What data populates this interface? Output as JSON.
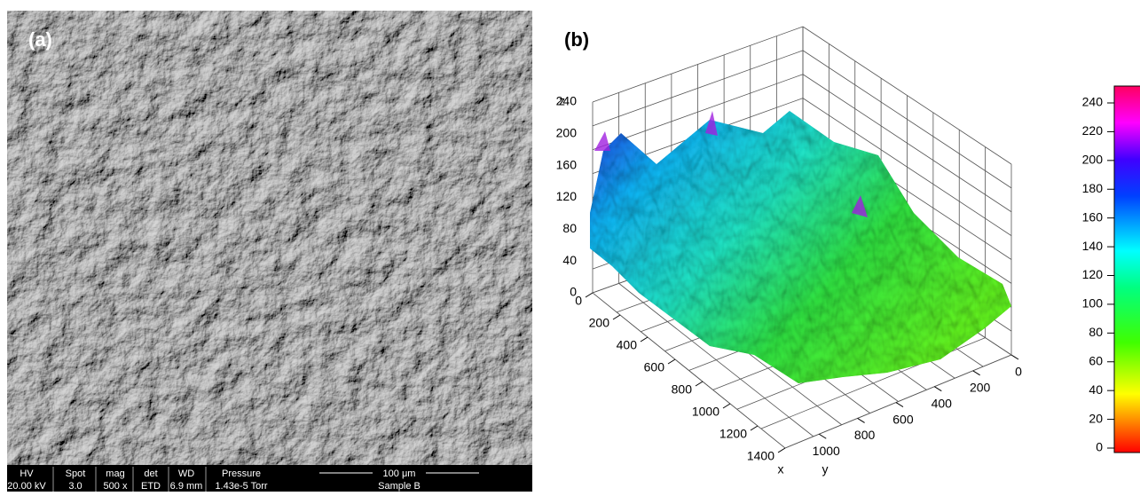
{
  "panel_a": {
    "label": "(a)",
    "info_headers": [
      "HV",
      "Spot",
      "mag",
      "det",
      "WD",
      "Pressure"
    ],
    "info_values": [
      "20.00 kV",
      "3.0",
      "500 x",
      "ETD",
      "6.9 mm",
      "1.43e-5 Torr"
    ],
    "scale_bar": "100 μm",
    "sample": "Sample B"
  },
  "panel_b": {
    "label": "(b)",
    "z_label": "z",
    "z_ticks": [
      "0",
      "40",
      "80",
      "120",
      "160",
      "200",
      "240"
    ],
    "x_label": "x",
    "x_ticks": [
      "0",
      "200",
      "400",
      "600",
      "800",
      "1000",
      "1200",
      "1400"
    ],
    "y_label": "y",
    "y_ticks": [
      "0",
      "200",
      "400",
      "600",
      "800",
      "1000"
    ]
  },
  "colorbar": {
    "ticks": [
      "0",
      "20",
      "40",
      "60",
      "80",
      "100",
      "120",
      "140",
      "160",
      "180",
      "200",
      "220",
      "240"
    ]
  }
}
